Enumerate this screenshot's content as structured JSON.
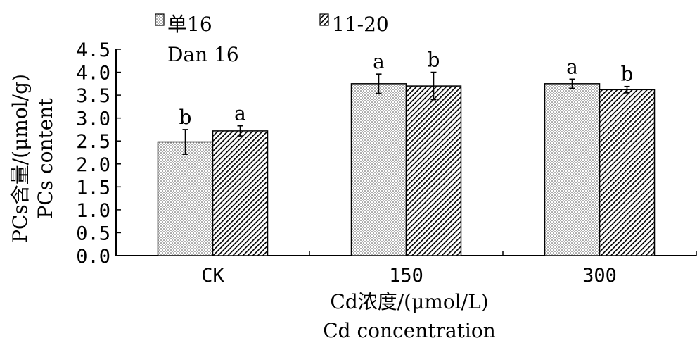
{
  "chart_data": {
    "type": "bar",
    "title": "",
    "categories": [
      "CK",
      "150",
      "300"
    ],
    "series": [
      {
        "name": "单16",
        "name_en": "Dan 16",
        "pattern": "dots",
        "values": [
          2.48,
          3.75,
          3.75
        ],
        "errors": [
          0.27,
          0.21,
          0.1
        ],
        "letters": [
          "b",
          "a",
          "a"
        ]
      },
      {
        "name": "11-20",
        "pattern": "hatch",
        "values": [
          2.72,
          3.7,
          3.62
        ],
        "errors": [
          0.11,
          0.3,
          0.07
        ],
        "letters": [
          "a",
          "b",
          "b"
        ]
      }
    ],
    "ylim": [
      0,
      4.5
    ],
    "yticks": [
      "0.0",
      "0.5",
      "1.0",
      "1.5",
      "2.0",
      "2.5",
      "3.0",
      "3.5",
      "4.0",
      "4.5"
    ],
    "xlabel": "Cd浓度/(μmol/L)",
    "xlabel_en": "Cd concentration",
    "ylabel": "PCs含量/(μmol/g)",
    "ylabel_en": "PCs content",
    "grid": false,
    "legend_position": "top-left"
  }
}
